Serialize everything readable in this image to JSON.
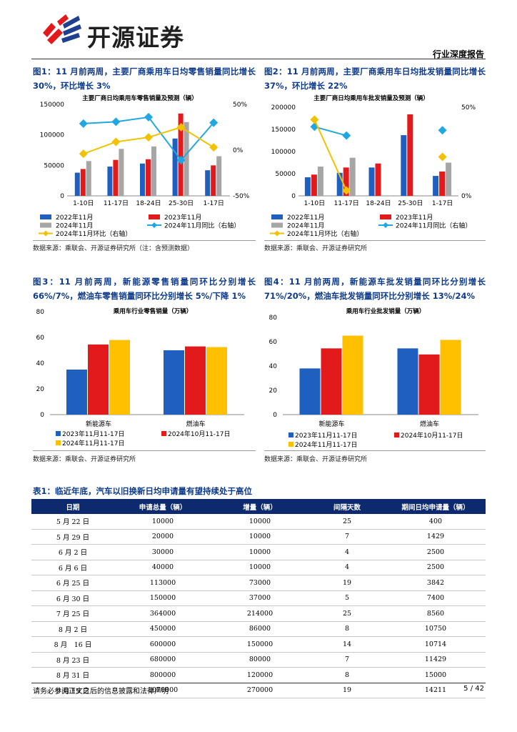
{
  "header": {
    "company": "开源证券",
    "report_type": "行业深度报告"
  },
  "figures": [
    {
      "title": "图1：11 月前两周，主要厂商乘用车日均零售销量同比增长 30%，环比增长 3%",
      "source": "数据来源：乘联会、开源证券研究所（注：含预测数据）",
      "chart_data": {
        "type": "bar",
        "title": "主要厂商日均乘用车零售销量及预测（辆）",
        "categories": [
          "1-10日",
          "11-17日",
          "18-24日",
          "25-30日",
          "1-17日"
        ],
        "ylim": [
          0,
          150000
        ],
        "y_ticks": [
          "0",
          "50000",
          "100000",
          "150000"
        ],
        "y2lim": [
          -50,
          50
        ],
        "y2_ticks": [
          "-50%",
          "0%",
          "50%"
        ],
        "series": [
          {
            "name": "2022年11月",
            "values": [
              38000,
              48000,
              53000,
              94000,
              42000
            ],
            "color": "#1f5fbf"
          },
          {
            "name": "2023年11月",
            "values": [
              44000,
              59000,
              60000,
              135000,
              50000
            ],
            "color": "#e31a1c"
          },
          {
            "name": "2024年11月",
            "values": [
              57000,
              77000,
              81000,
              121000,
              65000
            ],
            "color": "#a6a6a6"
          }
        ],
        "lines": [
          {
            "name": "2024年11月同比（右轴）",
            "values": [
              29,
              31,
              36,
              -11,
              30
            ],
            "color": "#1ea7e0",
            "marker": "diamond"
          },
          {
            "name": "2024年11月环比（右轴）",
            "values": [
              -4,
              9,
              14,
              25,
              3
            ],
            "color": "#f2c200",
            "marker": "diamond"
          }
        ]
      }
    },
    {
      "title": "图2：11 月前两周，主要厂商乘用车日均批发销量同比增长 37%，环比增长 22%",
      "source": "数据来源：乘联会、开源证券研究所",
      "chart_data": {
        "type": "bar",
        "title": "主要厂商日均乘用车批发销量及预测（辆）",
        "categories": [
          "1-10日",
          "11-17日",
          "18-24日",
          "25-30日",
          "1-17日"
        ],
        "ylim": [
          0,
          200000
        ],
        "y_ticks": [
          "0",
          "50000",
          "100000",
          "150000",
          "200000"
        ],
        "y2lim": [
          0,
          50
        ],
        "y2_ticks": [
          "0%",
          "50%"
        ],
        "series": [
          {
            "name": "2022年11月",
            "values": [
              42000,
              52000,
              64000,
              137000,
              45000
            ],
            "color": "#1f5fbf"
          },
          {
            "name": "2023年11月",
            "values": [
              48000,
              64000,
              73000,
              184000,
              55000
            ],
            "color": "#e31a1c"
          },
          {
            "name": "2024年11月",
            "values": [
              66000,
              86000,
              null,
              null,
              75000
            ],
            "color": "#a6a6a6"
          }
        ],
        "lines": [
          {
            "name": "2024年11月同比（右轴）",
            "values": [
              39,
              34,
              null,
              null,
              37
            ],
            "color": "#1ea7e0",
            "marker": "diamond"
          },
          {
            "name": "2024年11月环比（右轴）",
            "values": [
              43,
              3,
              null,
              null,
              22
            ],
            "color": "#f2c200",
            "marker": "diamond"
          }
        ]
      }
    },
    {
      "title": "图3：11 月前两周，新能源零售销量同环比分别增长 66%/7%，燃油车零售销量同环比分别增长 5%/下降 1%",
      "source": "数据来源：乘联会、开源证券研究所",
      "chart_data": {
        "type": "bar",
        "title": "乘用车行业零售销量（万辆）",
        "categories": [
          "新能源车",
          "燃油车"
        ],
        "ylim": [
          0,
          80
        ],
        "y_ticks": [
          "0",
          "20",
          "40",
          "60",
          "80"
        ],
        "series": [
          {
            "name": "2023年11月11-17日",
            "values": [
              35,
              50
            ],
            "color": "#1f5fbf"
          },
          {
            "name": "2024年10月11-17日",
            "values": [
              54.5,
              53
            ],
            "color": "#e31a1c"
          },
          {
            "name": "2024年11月11-17日",
            "values": [
              58,
              52.5
            ],
            "color": "#ffc000"
          }
        ]
      }
    },
    {
      "title": "图4：11 月前两周，新能源车批发销量同环比分别增长 71%/20%，燃油车批发销量同环比分别增长 13%/24%",
      "source": "数据来源：乘联会、开源证券研究所",
      "chart_data": {
        "type": "bar",
        "title": "乘用车行业批发销量（万辆）",
        "categories": [
          "新能源车",
          "燃油车"
        ],
        "ylim": [
          0,
          80
        ],
        "y_ticks": [
          "0",
          "20",
          "40",
          "60",
          "80"
        ],
        "series": [
          {
            "name": "2023年11月11-17日",
            "values": [
              38,
              54.5
            ],
            "color": "#1f5fbf"
          },
          {
            "name": "2024年10月11-17日",
            "values": [
              54.5,
              49.5
            ],
            "color": "#e31a1c"
          },
          {
            "name": "2024年11月11-17日",
            "values": [
              65,
              61.5
            ],
            "color": "#ffc000"
          }
        ]
      }
    }
  ],
  "table": {
    "title": "表1：临近年底，汽车以旧换新日均申请量有望持续处于高位",
    "headers": [
      "日期",
      "申请总量（辆）",
      "增量（辆）",
      "间隔天数",
      "期间日均申请量（辆）"
    ],
    "rows": [
      [
        "5 月 22 日",
        "10000",
        "10000",
        "25",
        "400"
      ],
      [
        "5 月 29 日",
        "20000",
        "10000",
        "7",
        "1429"
      ],
      [
        "6 月 2 日",
        "30000",
        "10000",
        "4",
        "2500"
      ],
      [
        "6 月 6 日",
        "40000",
        "10000",
        "4",
        "2500"
      ],
      [
        "6 月 25 日",
        "113000",
        "73000",
        "19",
        "3842"
      ],
      [
        "6 月 30 日",
        "150000",
        "37000",
        "5",
        "7400"
      ],
      [
        "7 月 25 日",
        "364000",
        "214000",
        "25",
        "8560"
      ],
      [
        "8 月 2 日",
        "450000",
        "86000",
        "8",
        "10750"
      ],
      [
        "8 月　16 日",
        "600000",
        "150000",
        "14",
        "10714"
      ],
      [
        "8 月 23 日",
        "680000",
        "80000",
        "7",
        "11429"
      ],
      [
        "8 月 31 日",
        "800000",
        "120000",
        "8",
        "15000"
      ],
      [
        "9 月 19 日",
        "1070000",
        "270000",
        "19",
        "14211"
      ]
    ]
  },
  "footer": {
    "disclaimer": "请务必参阅正文之后的信息披露和法律声明",
    "page": "5 / 42"
  }
}
